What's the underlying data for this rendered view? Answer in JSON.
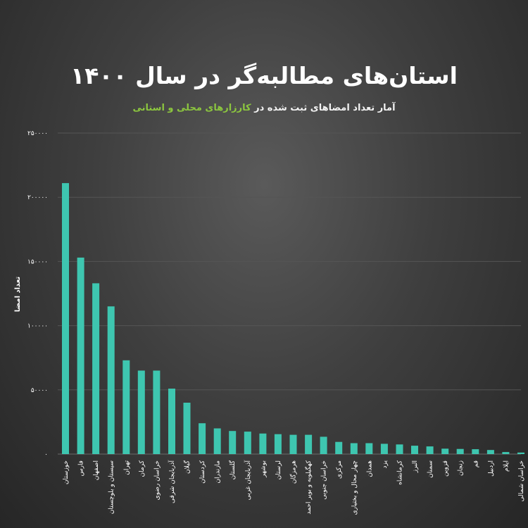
{
  "chart_data": {
    "type": "bar",
    "title": "استان‌های مطالبه‌گر در سال ۱۴۰۰",
    "subtitle_prefix": "آمار تعداد امضاهای ثبت شده در",
    "subtitle_highlight": "کارزارهای محلی و استانی",
    "ylabel": "تعداد امضا",
    "xlabel": "",
    "ylim": [
      0,
      250000
    ],
    "yticks": [
      0,
      50000,
      100000,
      150000,
      200000,
      250000
    ],
    "ytick_labels": [
      "۰",
      "۵۰۰۰۰",
      "۱۰۰۰۰۰",
      "۱۵۰۰۰۰",
      "۲۰۰۰۰۰",
      "۲۵۰۰۰۰"
    ],
    "grid": true,
    "bar_color": "#3ec6b0",
    "categories": [
      "خوزستان",
      "فارس",
      "اصفهان",
      "سیستان و بلوچستان",
      "تهران",
      "کرمان",
      "خراسان رضوی",
      "آذربایجان شرقی",
      "گیلان",
      "کردستان",
      "مازندران",
      "گلستان",
      "آذربایجان غربی",
      "بوشهر",
      "لرستان",
      "هرمزگان",
      "کهگیلویه و بویر احمد",
      "خراسان جنوبی",
      "مرکزی",
      "چهار محال و بختیاری",
      "همدان",
      "یزد",
      "کرمانشاه",
      "البرز",
      "سمنان",
      "قزوین",
      "زنجان",
      "قم",
      "اردبیل",
      "ایلام",
      "خراسان شمالی"
    ],
    "values": [
      211000,
      153000,
      133000,
      115000,
      73000,
      65000,
      65000,
      51000,
      40000,
      24000,
      20000,
      18000,
      17500,
      16000,
      15500,
      15000,
      15000,
      13500,
      9500,
      8500,
      8500,
      8000,
      7500,
      6500,
      6000,
      4200,
      4000,
      3800,
      3200,
      1600,
      1200
    ]
  }
}
